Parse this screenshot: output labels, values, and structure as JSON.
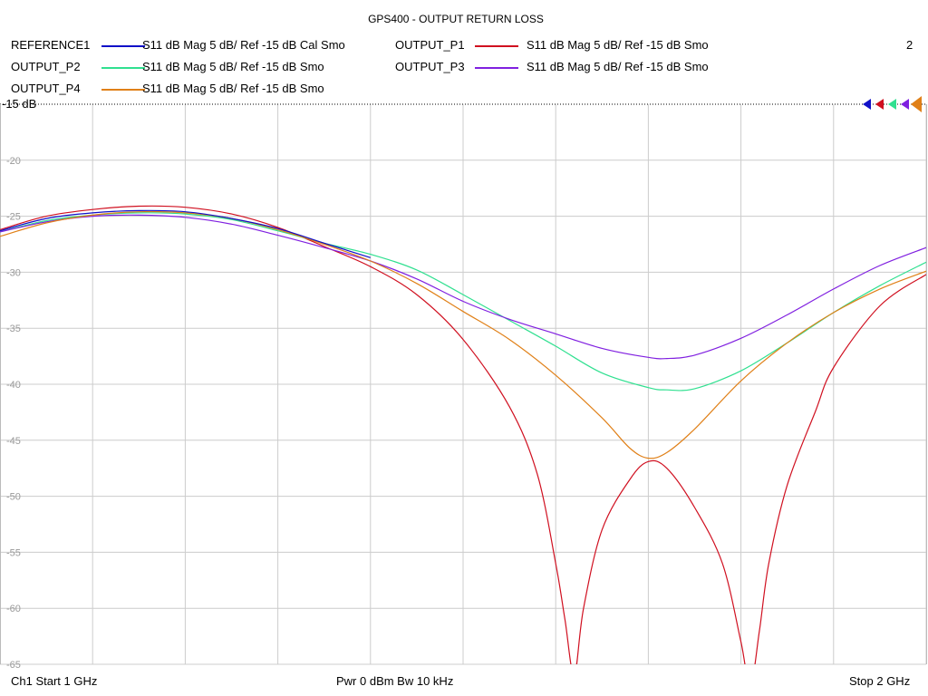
{
  "title": "GPS400 - OUTPUT RETURN LOSS",
  "page_number": "2",
  "legend": [
    {
      "name": "REFERENCE1",
      "color": "#1010c8",
      "desc": "S11  dB Mag  5 dB/ Ref -15 dB  Cal Smo"
    },
    {
      "name": "OUTPUT_P1",
      "color": "#d01020",
      "desc": "S11  dB Mag  5 dB/ Ref -15 dB  Smo"
    },
    {
      "name": "OUTPUT_P2",
      "color": "#30e090",
      "desc": "S11  dB Mag  5 dB/ Ref -15 dB  Smo"
    },
    {
      "name": "OUTPUT_P3",
      "color": "#8020e0",
      "desc": "S11  dB Mag  5 dB/ Ref -15 dB  Smo"
    },
    {
      "name": "OUTPUT_P4",
      "color": "#e08018",
      "desc": "S11  dB Mag  5 dB/ Ref -15 dB  Smo"
    }
  ],
  "footer": {
    "start": "Ch1  Start  1 GHz",
    "power": "Pwr  0 dBm  Bw  10 kHz",
    "stop": "Stop  2 GHz"
  },
  "chart_data": {
    "type": "line",
    "title": "GPS400 - OUTPUT RETURN LOSS",
    "xlim": [
      1.0,
      2.0
    ],
    "ylim": [
      -65,
      -15
    ],
    "grid": true,
    "y_ticks": [
      -15,
      -20,
      -25,
      -30,
      -35,
      -40,
      -45,
      -50,
      -55,
      -60,
      -65
    ],
    "y_tick_labels": [
      "-15 dB",
      "-20",
      "-25",
      "-30",
      "-35",
      "-40",
      "-45",
      "-50",
      "-55",
      "-60",
      "-65"
    ],
    "ref_level": -15,
    "series": [
      {
        "name": "OUTPUT_P1",
        "color": "#d01020",
        "x": [
          1.0,
          1.05,
          1.1,
          1.15,
          1.2,
          1.25,
          1.3,
          1.35,
          1.4,
          1.45,
          1.5,
          1.55,
          1.58,
          1.6,
          1.61,
          1.62,
          1.63,
          1.65,
          1.68,
          1.7,
          1.72,
          1.75,
          1.78,
          1.8,
          1.81,
          1.82,
          1.83,
          1.85,
          1.88,
          1.9,
          1.95,
          2.0
        ],
        "y": [
          -26.2,
          -25.0,
          -24.4,
          -24.1,
          -24.2,
          -24.8,
          -26.0,
          -27.7,
          -29.5,
          -32.0,
          -36.0,
          -42.0,
          -48.0,
          -56.0,
          -61.0,
          -66.0,
          -60.0,
          -53.0,
          -48.5,
          -46.9,
          -47.5,
          -51.0,
          -56.0,
          -63.0,
          -67.0,
          -62.0,
          -56.0,
          -49.0,
          -42.5,
          -38.5,
          -33.0,
          -30.2
        ]
      },
      {
        "name": "OUTPUT_P2",
        "color": "#30e090",
        "x": [
          1.0,
          1.05,
          1.1,
          1.15,
          1.2,
          1.25,
          1.3,
          1.35,
          1.4,
          1.45,
          1.5,
          1.55,
          1.6,
          1.65,
          1.7,
          1.72,
          1.75,
          1.8,
          1.85,
          1.9,
          1.95,
          2.0
        ],
        "y": [
          -26.4,
          -25.4,
          -24.9,
          -24.7,
          -24.8,
          -25.3,
          -26.3,
          -27.4,
          -28.4,
          -29.8,
          -32.0,
          -34.3,
          -36.6,
          -39.0,
          -40.3,
          -40.5,
          -40.4,
          -38.8,
          -36.3,
          -33.6,
          -31.2,
          -29.1
        ]
      },
      {
        "name": "OUTPUT_P3",
        "color": "#8020e0",
        "x": [
          1.0,
          1.05,
          1.1,
          1.15,
          1.2,
          1.25,
          1.3,
          1.35,
          1.4,
          1.45,
          1.5,
          1.55,
          1.6,
          1.65,
          1.7,
          1.72,
          1.75,
          1.8,
          1.85,
          1.9,
          1.95,
          2.0
        ],
        "y": [
          -26.4,
          -25.5,
          -25.0,
          -24.9,
          -25.1,
          -25.7,
          -26.7,
          -27.8,
          -29.0,
          -30.6,
          -32.6,
          -34.2,
          -35.5,
          -36.8,
          -37.6,
          -37.7,
          -37.4,
          -35.9,
          -33.8,
          -31.5,
          -29.4,
          -27.8
        ]
      },
      {
        "name": "OUTPUT_P4",
        "color": "#e08018",
        "x": [
          1.0,
          1.05,
          1.1,
          1.15,
          1.2,
          1.25,
          1.3,
          1.35,
          1.4,
          1.45,
          1.5,
          1.55,
          1.6,
          1.65,
          1.68,
          1.7,
          1.72,
          1.75,
          1.8,
          1.85,
          1.9,
          1.95,
          2.0
        ],
        "y": [
          -26.8,
          -25.6,
          -24.9,
          -24.6,
          -24.7,
          -25.2,
          -26.2,
          -27.5,
          -29.0,
          -31.0,
          -33.5,
          -36.0,
          -39.2,
          -43.0,
          -45.7,
          -46.6,
          -46.1,
          -44.0,
          -39.7,
          -36.3,
          -33.6,
          -31.5,
          -29.9
        ]
      },
      {
        "name": "REFERENCE1",
        "color": "#1010c8",
        "x": [
          1.0,
          1.05,
          1.1,
          1.15,
          1.2,
          1.25,
          1.3,
          1.35,
          1.4
        ],
        "y": [
          -26.3,
          -25.2,
          -24.7,
          -24.5,
          -24.6,
          -25.2,
          -26.1,
          -27.4,
          -28.7
        ]
      }
    ]
  }
}
